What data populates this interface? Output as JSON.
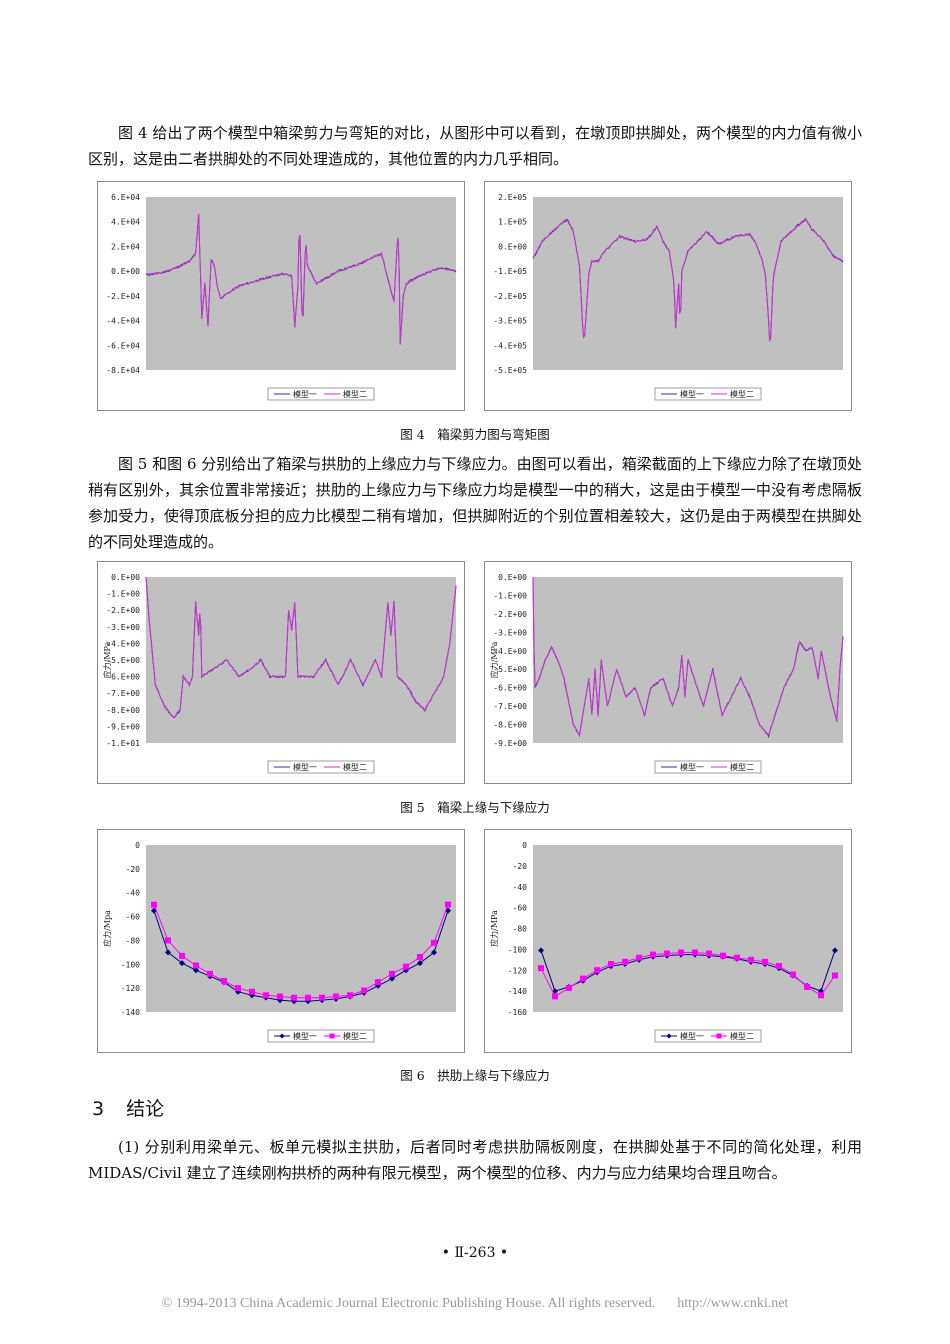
{
  "paragraphs": {
    "p1": "图 4 给出了两个模型中箱梁剪力与弯矩的对比，从图形中可以看到，在墩顶即拱脚处，两个模型的内力值有微小区别，这是由二者拱脚处的不同处理造成的，其他位置的内力几乎相同。",
    "p2": "图 5 和图 6 分别给出了箱梁与拱肋的上缘应力与下缘应力。由图可以看出，箱梁截面的上下缘应力除了在墩顶处稍有区别外，其余位置非常接近；拱肋的上缘应力与下缘应力均是模型一中的稍大，这是由于模型一中没有考虑隔板参加受力，使得顶底板分担的应力比模型二稍有增加，但拱脚附近的个别位置相差较大，这仍是由于两模型在拱脚处的不同处理造成的。",
    "p3": "(1) 分别利用梁单元、板单元模拟主拱肋，后者同时考虑拱肋隔板刚度，在拱脚处基于不同的简化处理，利用 MIDAS/Civil 建立了连续刚构拱桥的两种有限元模型，两个模型的位移、内力与应力结果均合理且吻合。"
  },
  "captions": {
    "fig4": "图 4　箱梁剪力图与弯矩图",
    "fig5": "图 5　箱梁上缘与下缘应力",
    "fig6": "图 6　拱肋上缘与下缘应力"
  },
  "section": {
    "number": "3",
    "title": "结论"
  },
  "page_number": "• Ⅱ-263 •",
  "footer": {
    "copyright": "© 1994-2013 China Academic Journal Electronic Publishing House. All rights reserved.",
    "url": "http://www.cnki.net"
  },
  "colors": {
    "model1": "#3030a0",
    "model2": "#cc33cc",
    "plot_bg": "#c0c0c0",
    "marker1": "#000080",
    "marker2": "#ff00ff"
  },
  "chart_data": [
    {
      "id": "shear",
      "type": "line",
      "ylim": [
        -80000,
        60000
      ],
      "yticks": [
        "6.E+04",
        "4.E+04",
        "2.E+04",
        "0.E+00",
        "-2.E+04",
        "-4.E+04",
        "-6.E+04",
        "-8.E+04"
      ],
      "ylabel": "",
      "series": [
        {
          "name": "模型一"
        },
        {
          "name": "模型二"
        }
      ],
      "legend": "bottom",
      "profile": [
        [
          0,
          -3000
        ],
        [
          0.05,
          -1500
        ],
        [
          0.1,
          3000
        ],
        [
          0.14,
          8000
        ],
        [
          0.16,
          14000
        ],
        [
          0.17,
          46000
        ],
        [
          0.18,
          -38000
        ],
        [
          0.19,
          -10000
        ],
        [
          0.2,
          -45000
        ],
        [
          0.21,
          10000
        ],
        [
          0.22,
          5000
        ],
        [
          0.23,
          -12000
        ],
        [
          0.24,
          -22000
        ],
        [
          0.3,
          -12000
        ],
        [
          0.38,
          -6000
        ],
        [
          0.44,
          -2000
        ],
        [
          0.47,
          -4000
        ],
        [
          0.48,
          -45000
        ],
        [
          0.49,
          -12000
        ],
        [
          0.495,
          44000
        ],
        [
          0.505,
          -50000
        ],
        [
          0.515,
          28000
        ],
        [
          0.52,
          5000
        ],
        [
          0.55,
          -10000
        ],
        [
          0.62,
          0
        ],
        [
          0.68,
          5000
        ],
        [
          0.74,
          12000
        ],
        [
          0.76,
          14000
        ],
        [
          0.8,
          -25000
        ],
        [
          0.81,
          20000
        ],
        [
          0.815,
          30000
        ],
        [
          0.82,
          -60000
        ],
        [
          0.83,
          -20000
        ],
        [
          0.84,
          -10000
        ],
        [
          0.88,
          -4000
        ],
        [
          0.95,
          3000
        ],
        [
          1.0,
          0
        ]
      ]
    },
    {
      "id": "moment",
      "type": "line",
      "ylim": [
        -500000,
        200000
      ],
      "yticks": [
        "2.E+05",
        "1.E+05",
        "0.E+00",
        "-1.E+05",
        "-2.E+05",
        "-3.E+05",
        "-4.E+05",
        "-5.E+05"
      ],
      "ylabel": "",
      "series": [
        {
          "name": "模型一"
        },
        {
          "name": "模型二"
        }
      ],
      "legend": "bottom",
      "profile": [
        [
          0,
          -50000
        ],
        [
          0.03,
          20000
        ],
        [
          0.08,
          80000
        ],
        [
          0.11,
          110000
        ],
        [
          0.13,
          60000
        ],
        [
          0.14,
          -10000
        ],
        [
          0.15,
          -80000
        ],
        [
          0.16,
          -320000
        ],
        [
          0.165,
          -390000
        ],
        [
          0.17,
          -300000
        ],
        [
          0.18,
          -110000
        ],
        [
          0.19,
          -60000
        ],
        [
          0.21,
          -60000
        ],
        [
          0.23,
          -20000
        ],
        [
          0.28,
          40000
        ],
        [
          0.33,
          20000
        ],
        [
          0.37,
          30000
        ],
        [
          0.4,
          80000
        ],
        [
          0.42,
          20000
        ],
        [
          0.44,
          -20000
        ],
        [
          0.455,
          -150000
        ],
        [
          0.46,
          -330000
        ],
        [
          0.47,
          -150000
        ],
        [
          0.475,
          -330000
        ],
        [
          0.48,
          -100000
        ],
        [
          0.5,
          -20000
        ],
        [
          0.53,
          20000
        ],
        [
          0.56,
          60000
        ],
        [
          0.6,
          10000
        ],
        [
          0.65,
          40000
        ],
        [
          0.7,
          50000
        ],
        [
          0.72,
          10000
        ],
        [
          0.74,
          -60000
        ],
        [
          0.75,
          -120000
        ],
        [
          0.76,
          -300000
        ],
        [
          0.765,
          -420000
        ],
        [
          0.775,
          -120000
        ],
        [
          0.8,
          20000
        ],
        [
          0.85,
          80000
        ],
        [
          0.88,
          110000
        ],
        [
          0.9,
          70000
        ],
        [
          0.94,
          20000
        ],
        [
          0.97,
          -40000
        ],
        [
          1.0,
          -60000
        ]
      ]
    },
    {
      "id": "top-stress",
      "type": "line",
      "ylim": [
        -10,
        0
      ],
      "yticks": [
        "0.E+00",
        "-1.E+00",
        "-2.E+00",
        "-3.E+00",
        "-4.E+00",
        "-5.E+00",
        "-6.E+00",
        "-7.E+00",
        "-8.E+00",
        "-9.E+00",
        "-1.E+01"
      ],
      "ylabel": "应力/MPa",
      "series": [
        {
          "name": "模型一"
        },
        {
          "name": "模型二"
        }
      ],
      "legend": "bottom",
      "profile": [
        [
          0,
          0
        ],
        [
          0.01,
          -2.5
        ],
        [
          0.03,
          -6.5
        ],
        [
          0.06,
          -7.8
        ],
        [
          0.09,
          -8.5
        ],
        [
          0.11,
          -8.0
        ],
        [
          0.12,
          -6.0
        ],
        [
          0.14,
          -6.5
        ],
        [
          0.15,
          -6.0
        ],
        [
          0.16,
          -1.5
        ],
        [
          0.17,
          -3.5
        ],
        [
          0.175,
          -1.5
        ],
        [
          0.18,
          -6.0
        ],
        [
          0.22,
          -5.5
        ],
        [
          0.26,
          -5.0
        ],
        [
          0.3,
          -6.0
        ],
        [
          0.34,
          -5.5
        ],
        [
          0.37,
          -5.0
        ],
        [
          0.4,
          -6.0
        ],
        [
          0.45,
          -6.0
        ],
        [
          0.46,
          -2.0
        ],
        [
          0.47,
          -3.2
        ],
        [
          0.48,
          -1.5
        ],
        [
          0.49,
          -6.0
        ],
        [
          0.54,
          -6.0
        ],
        [
          0.58,
          -5.0
        ],
        [
          0.62,
          -6.5
        ],
        [
          0.66,
          -5.0
        ],
        [
          0.7,
          -6.5
        ],
        [
          0.74,
          -5.0
        ],
        [
          0.76,
          -6.0
        ],
        [
          0.78,
          -1.5
        ],
        [
          0.79,
          -3.5
        ],
        [
          0.8,
          -1.5
        ],
        [
          0.81,
          -6.0
        ],
        [
          0.84,
          -6.5
        ],
        [
          0.87,
          -7.5
        ],
        [
          0.9,
          -8.0
        ],
        [
          0.93,
          -7.0
        ],
        [
          0.96,
          -6.0
        ],
        [
          0.98,
          -4.0
        ],
        [
          1.0,
          -0.5
        ]
      ]
    },
    {
      "id": "bottom-stress",
      "type": "line",
      "ylim": [
        -9,
        0
      ],
      "yticks": [
        "0.E+00",
        "-1.E+00",
        "-2.E+00",
        "-3.E+00",
        "-4.E+00",
        "-5.E+00",
        "-6.E+00",
        "-7.E+00",
        "-8.E+00",
        "-9.E+00"
      ],
      "ylabel": "应力/MPa",
      "series": [
        {
          "name": "模型一"
        },
        {
          "name": "模型二"
        }
      ],
      "legend": "bottom",
      "profile": [
        [
          0,
          0
        ],
        [
          0.005,
          -6.0
        ],
        [
          0.02,
          -5.5
        ],
        [
          0.04,
          -4.5
        ],
        [
          0.06,
          -3.8
        ],
        [
          0.08,
          -4.5
        ],
        [
          0.1,
          -5.5
        ],
        [
          0.13,
          -8.0
        ],
        [
          0.15,
          -8.6
        ],
        [
          0.17,
          -6.5
        ],
        [
          0.18,
          -5.5
        ],
        [
          0.19,
          -7.5
        ],
        [
          0.2,
          -5.0
        ],
        [
          0.21,
          -7.5
        ],
        [
          0.22,
          -4.5
        ],
        [
          0.24,
          -7.0
        ],
        [
          0.27,
          -5.0
        ],
        [
          0.3,
          -6.5
        ],
        [
          0.33,
          -6.0
        ],
        [
          0.36,
          -7.5
        ],
        [
          0.38,
          -6.0
        ],
        [
          0.42,
          -5.5
        ],
        [
          0.45,
          -7.0
        ],
        [
          0.47,
          -6.0
        ],
        [
          0.48,
          -4.2
        ],
        [
          0.49,
          -6.5
        ],
        [
          0.5,
          -4.5
        ],
        [
          0.52,
          -5.5
        ],
        [
          0.55,
          -7.0
        ],
        [
          0.58,
          -5.0
        ],
        [
          0.61,
          -7.5
        ],
        [
          0.64,
          -6.5
        ],
        [
          0.67,
          -5.5
        ],
        [
          0.7,
          -6.5
        ],
        [
          0.73,
          -8.0
        ],
        [
          0.76,
          -8.6
        ],
        [
          0.78,
          -7.5
        ],
        [
          0.81,
          -6.0
        ],
        [
          0.84,
          -5.0
        ],
        [
          0.86,
          -3.5
        ],
        [
          0.88,
          -4.0
        ],
        [
          0.9,
          -3.8
        ],
        [
          0.92,
          -5.5
        ],
        [
          0.93,
          -4.0
        ],
        [
          0.96,
          -6.5
        ],
        [
          0.98,
          -7.8
        ],
        [
          0.99,
          -5.0
        ],
        [
          1.0,
          -3.2
        ]
      ]
    },
    {
      "id": "arch-top",
      "type": "line",
      "ylim": [
        -140,
        0
      ],
      "yticks": [
        "0",
        "-20",
        "-40",
        "-60",
        "-80",
        "-100",
        "-120",
        "-140"
      ],
      "ylabel": "应力/Mpa",
      "series": [
        {
          "name": "模型一",
          "marker": "diamond",
          "values": [
            -55,
            -90,
            -99,
            -105,
            -110,
            -115,
            -123,
            -126,
            -128,
            -130,
            -131,
            -131,
            -130,
            -129,
            -127,
            -124,
            -118,
            -112,
            -105,
            -99,
            -90,
            -55
          ]
        },
        {
          "name": "模型二",
          "marker": "square",
          "values": [
            -50,
            -80,
            -93,
            -101,
            -108,
            -114,
            -120,
            -123,
            -126,
            -127,
            -128,
            -128,
            -128,
            -127,
            -126,
            -122,
            -115,
            -108,
            -102,
            -94,
            -82,
            -50
          ]
        }
      ],
      "legend": "bottom"
    },
    {
      "id": "arch-bottom",
      "type": "line",
      "ylim": [
        -160,
        0
      ],
      "yticks": [
        "0",
        "-20",
        "-40",
        "-60",
        "-80",
        "-100",
        "-120",
        "-140",
        "-160"
      ],
      "ylabel": "应力/MPa",
      "series": [
        {
          "name": "模型一",
          "marker": "diamond",
          "values": [
            -101,
            -140,
            -136,
            -130,
            -122,
            -116,
            -114,
            -110,
            -107,
            -106,
            -105,
            -105,
            -106,
            -107,
            -109,
            -112,
            -114,
            -118,
            -125,
            -135,
            -140,
            -101
          ]
        },
        {
          "name": "模型二",
          "marker": "square",
          "values": [
            -118,
            -145,
            -137,
            -128,
            -120,
            -114,
            -112,
            -108,
            -105,
            -104,
            -103,
            -103,
            -104,
            -106,
            -108,
            -110,
            -112,
            -116,
            -124,
            -136,
            -144,
            -125
          ]
        }
      ],
      "legend": "bottom"
    }
  ]
}
